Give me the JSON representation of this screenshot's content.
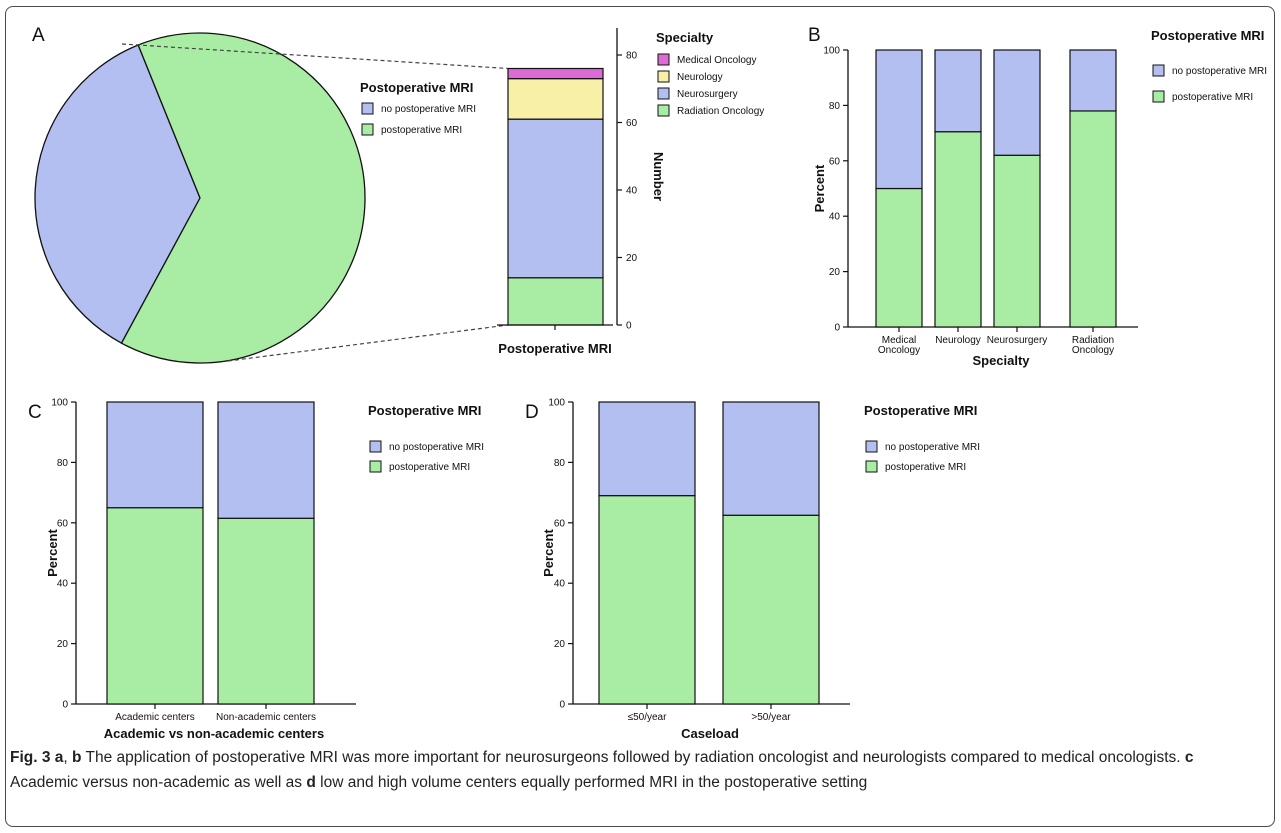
{
  "colors": {
    "no_mri": "#b3bff0",
    "mri": "#a9eca4",
    "medical_oncology": "#dd6bd6",
    "neurology": "#f7f0a6",
    "neurosurgery": "#b3bff0",
    "radiation_oncology": "#a9eca4",
    "stroke": "#111111"
  },
  "panels": {
    "a": {
      "label": "A"
    },
    "b": {
      "label": "B"
    },
    "c": {
      "label": "C"
    },
    "d": {
      "label": "D"
    }
  },
  "caption": {
    "fig": "Fig. 3",
    "a": "a",
    "sep": ", ",
    "b": "b",
    "text1": " The application of postoperative MRI was more important for neurosurgeons followed by radiation oncologist and neurologists compared to medical oncologists. ",
    "c": "c",
    "text2": " Academic versus non-academic as well as ",
    "d": "d",
    "text3": " low and high volume centers equally performed MRI in the postoperative setting"
  },
  "chart_data": [
    {
      "panel": "A",
      "type": "pie",
      "legend_title": "Postoperative MRI",
      "slices": [
        {
          "name": "no postoperative MRI",
          "value": 36,
          "color": "#b3bff0"
        },
        {
          "name": "postoperative MRI",
          "value": 64,
          "color": "#a9eca4"
        }
      ],
      "legend_position": "right"
    },
    {
      "panel": "A",
      "type": "bar",
      "stacked": true,
      "categories": [
        "Postoperative MRI"
      ],
      "xlabel": "Postoperative MRI",
      "ylabel": "Number",
      "ylim": [
        0,
        88
      ],
      "yticks": [
        0,
        20,
        40,
        60,
        80
      ],
      "legend_title": "Specialty",
      "series": [
        {
          "name": "Radiation Oncology",
          "values": [
            14
          ],
          "color": "#a9eca4"
        },
        {
          "name": "Neurosurgery",
          "values": [
            47
          ],
          "color": "#b3bff0"
        },
        {
          "name": "Neurology",
          "values": [
            12
          ],
          "color": "#f7f0a6"
        },
        {
          "name": "Medical Oncology",
          "values": [
            3
          ],
          "color": "#dd6bd6"
        }
      ],
      "legend_order": [
        "Medical Oncology",
        "Neurology",
        "Neurosurgery",
        "Radiation Oncology"
      ]
    },
    {
      "panel": "B",
      "type": "bar",
      "stacked": true,
      "categories": [
        [
          "Medical",
          "Oncology"
        ],
        [
          "Neurology"
        ],
        [
          "Neurosurgery"
        ],
        [
          "Radiation",
          "Oncology"
        ]
      ],
      "xlabel": "Specialty",
      "ylabel": "Percent",
      "ylim": [
        0,
        100
      ],
      "yticks": [
        0,
        20,
        40,
        60,
        80,
        100
      ],
      "legend_title": "Postoperative MRI",
      "series": [
        {
          "name": "postoperative MRI",
          "values": [
            50,
            70.5,
            62,
            78
          ],
          "color": "#a9eca4"
        },
        {
          "name": "no postoperative MRI",
          "values": [
            50,
            29.5,
            38,
            22
          ],
          "color": "#b3bff0"
        }
      ],
      "legend_order": [
        "no postoperative MRI",
        "postoperative MRI"
      ]
    },
    {
      "panel": "C",
      "type": "bar",
      "stacked": true,
      "categories": [
        [
          "Academic centers"
        ],
        [
          "Non-academic centers"
        ]
      ],
      "xlabel": "Academic vs non-academic centers",
      "ylabel": "Percent",
      "ylim": [
        0,
        100
      ],
      "yticks": [
        0,
        20,
        40,
        60,
        80,
        100
      ],
      "legend_title": "Postoperative MRI",
      "series": [
        {
          "name": "postoperative MRI",
          "values": [
            65,
            61.5
          ],
          "color": "#a9eca4"
        },
        {
          "name": "no postoperative MRI",
          "values": [
            35,
            38.5
          ],
          "color": "#b3bff0"
        }
      ],
      "legend_order": [
        "no postoperative MRI",
        "postoperative MRI"
      ]
    },
    {
      "panel": "D",
      "type": "bar",
      "stacked": true,
      "categories": [
        [
          "≤50/year"
        ],
        [
          ">50/year"
        ]
      ],
      "xlabel": "Caseload",
      "ylabel": "Percent",
      "ylim": [
        0,
        100
      ],
      "yticks": [
        0,
        20,
        40,
        60,
        80,
        100
      ],
      "legend_title": "Postoperative MRI",
      "series": [
        {
          "name": "postoperative MRI",
          "values": [
            69,
            62.5
          ],
          "color": "#a9eca4"
        },
        {
          "name": "no postoperative MRI",
          "values": [
            31,
            37.5
          ],
          "color": "#b3bff0"
        }
      ],
      "legend_order": [
        "no postoperative MRI",
        "postoperative MRI"
      ]
    }
  ]
}
